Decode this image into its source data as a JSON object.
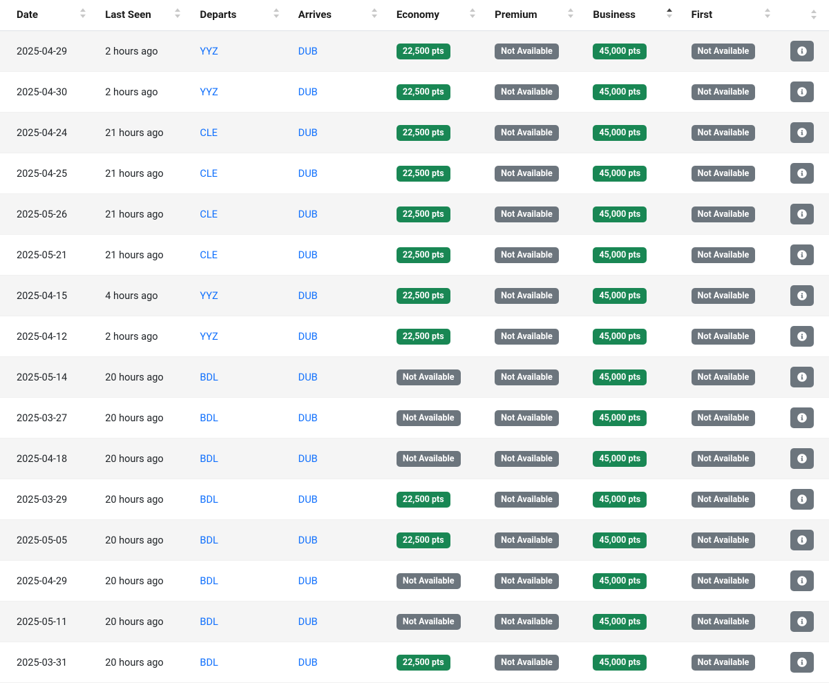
{
  "table": {
    "columns": [
      {
        "key": "date",
        "label": "Date",
        "sortable": true,
        "sorted": null
      },
      {
        "key": "last_seen",
        "label": "Last Seen",
        "sortable": true,
        "sorted": null
      },
      {
        "key": "departs",
        "label": "Departs",
        "sortable": true,
        "sorted": null
      },
      {
        "key": "arrives",
        "label": "Arrives",
        "sortable": true,
        "sorted": null
      },
      {
        "key": "economy",
        "label": "Economy",
        "sortable": true,
        "sorted": null
      },
      {
        "key": "premium",
        "label": "Premium",
        "sortable": true,
        "sorted": null
      },
      {
        "key": "business",
        "label": "Business",
        "sortable": true,
        "sorted": "asc"
      },
      {
        "key": "first",
        "label": "First",
        "sortable": true,
        "sorted": null
      },
      {
        "key": "info",
        "label": "",
        "sortable": true,
        "sorted": null
      }
    ],
    "badges": {
      "available_color": "#198754",
      "unavailable_color": "#6c757d",
      "unavailable_label": "Not Available"
    },
    "link_color": "#0d6efd",
    "row_odd_bg": "#f5f5f5",
    "row_even_bg": "#ffffff",
    "rows": [
      {
        "date": "2025-04-29",
        "last_seen": "2 hours ago",
        "departs": "YYZ",
        "arrives": "DUB",
        "economy": "22,500 pts",
        "premium": null,
        "business": "45,000 pts",
        "first": null
      },
      {
        "date": "2025-04-30",
        "last_seen": "2 hours ago",
        "departs": "YYZ",
        "arrives": "DUB",
        "economy": "22,500 pts",
        "premium": null,
        "business": "45,000 pts",
        "first": null
      },
      {
        "date": "2025-04-24",
        "last_seen": "21 hours ago",
        "departs": "CLE",
        "arrives": "DUB",
        "economy": "22,500 pts",
        "premium": null,
        "business": "45,000 pts",
        "first": null
      },
      {
        "date": "2025-04-25",
        "last_seen": "21 hours ago",
        "departs": "CLE",
        "arrives": "DUB",
        "economy": "22,500 pts",
        "premium": null,
        "business": "45,000 pts",
        "first": null
      },
      {
        "date": "2025-05-26",
        "last_seen": "21 hours ago",
        "departs": "CLE",
        "arrives": "DUB",
        "economy": "22,500 pts",
        "premium": null,
        "business": "45,000 pts",
        "first": null
      },
      {
        "date": "2025-05-21",
        "last_seen": "21 hours ago",
        "departs": "CLE",
        "arrives": "DUB",
        "economy": "22,500 pts",
        "premium": null,
        "business": "45,000 pts",
        "first": null
      },
      {
        "date": "2025-04-15",
        "last_seen": "4 hours ago",
        "departs": "YYZ",
        "arrives": "DUB",
        "economy": "22,500 pts",
        "premium": null,
        "business": "45,000 pts",
        "first": null
      },
      {
        "date": "2025-04-12",
        "last_seen": "2 hours ago",
        "departs": "YYZ",
        "arrives": "DUB",
        "economy": "22,500 pts",
        "premium": null,
        "business": "45,000 pts",
        "first": null
      },
      {
        "date": "2025-05-14",
        "last_seen": "20 hours ago",
        "departs": "BDL",
        "arrives": "DUB",
        "economy": null,
        "premium": null,
        "business": "45,000 pts",
        "first": null
      },
      {
        "date": "2025-03-27",
        "last_seen": "20 hours ago",
        "departs": "BDL",
        "arrives": "DUB",
        "economy": null,
        "premium": null,
        "business": "45,000 pts",
        "first": null
      },
      {
        "date": "2025-04-18",
        "last_seen": "20 hours ago",
        "departs": "BDL",
        "arrives": "DUB",
        "economy": null,
        "premium": null,
        "business": "45,000 pts",
        "first": null
      },
      {
        "date": "2025-03-29",
        "last_seen": "20 hours ago",
        "departs": "BDL",
        "arrives": "DUB",
        "economy": "22,500 pts",
        "premium": null,
        "business": "45,000 pts",
        "first": null
      },
      {
        "date": "2025-05-05",
        "last_seen": "20 hours ago",
        "departs": "BDL",
        "arrives": "DUB",
        "economy": "22,500 pts",
        "premium": null,
        "business": "45,000 pts",
        "first": null
      },
      {
        "date": "2025-04-29",
        "last_seen": "20 hours ago",
        "departs": "BDL",
        "arrives": "DUB",
        "economy": null,
        "premium": null,
        "business": "45,000 pts",
        "first": null
      },
      {
        "date": "2025-05-11",
        "last_seen": "20 hours ago",
        "departs": "BDL",
        "arrives": "DUB",
        "economy": null,
        "premium": null,
        "business": "45,000 pts",
        "first": null
      },
      {
        "date": "2025-03-31",
        "last_seen": "20 hours ago",
        "departs": "BDL",
        "arrives": "DUB",
        "economy": "22,500 pts",
        "premium": null,
        "business": "45,000 pts",
        "first": null
      }
    ]
  }
}
